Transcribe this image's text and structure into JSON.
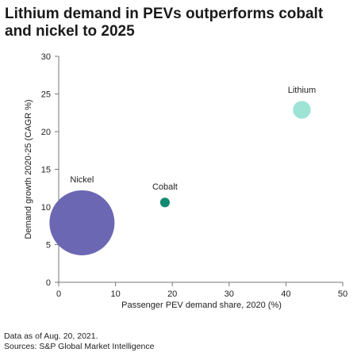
{
  "title_line1": "Lithium demand in PEVs outperforms cobalt",
  "title_line2": "and nickel to 2025",
  "footer": {
    "note": "Data as of Aug. 20, 2021.",
    "source": "Sources: S&P Global Market Intelligence"
  },
  "chart_data": {
    "type": "scatter",
    "bubble": true,
    "title": "Lithium demand in PEVs outperforms cobalt and nickel to 2025",
    "xlabel": "Passenger PEV demand share, 2020 (%)",
    "ylabel": "Demand growth 2020-25 (CAGR %)",
    "xlim": [
      0,
      50
    ],
    "ylim": [
      0,
      30
    ],
    "xticks": [
      0,
      10,
      20,
      30,
      40,
      50
    ],
    "yticks": [
      0,
      5,
      10,
      15,
      20,
      25,
      30
    ],
    "grid": false,
    "points": [
      {
        "label": "Nickel",
        "x": 4.1,
        "y": 7.9,
        "size": 100,
        "color": "#6b67b3"
      },
      {
        "label": "Cobalt",
        "x": 18.7,
        "y": 10.6,
        "size": 2.2,
        "color": "#138a72"
      },
      {
        "label": "Lithium",
        "x": 42.8,
        "y": 22.9,
        "size": 7.5,
        "color": "#9ee4d6"
      }
    ]
  }
}
